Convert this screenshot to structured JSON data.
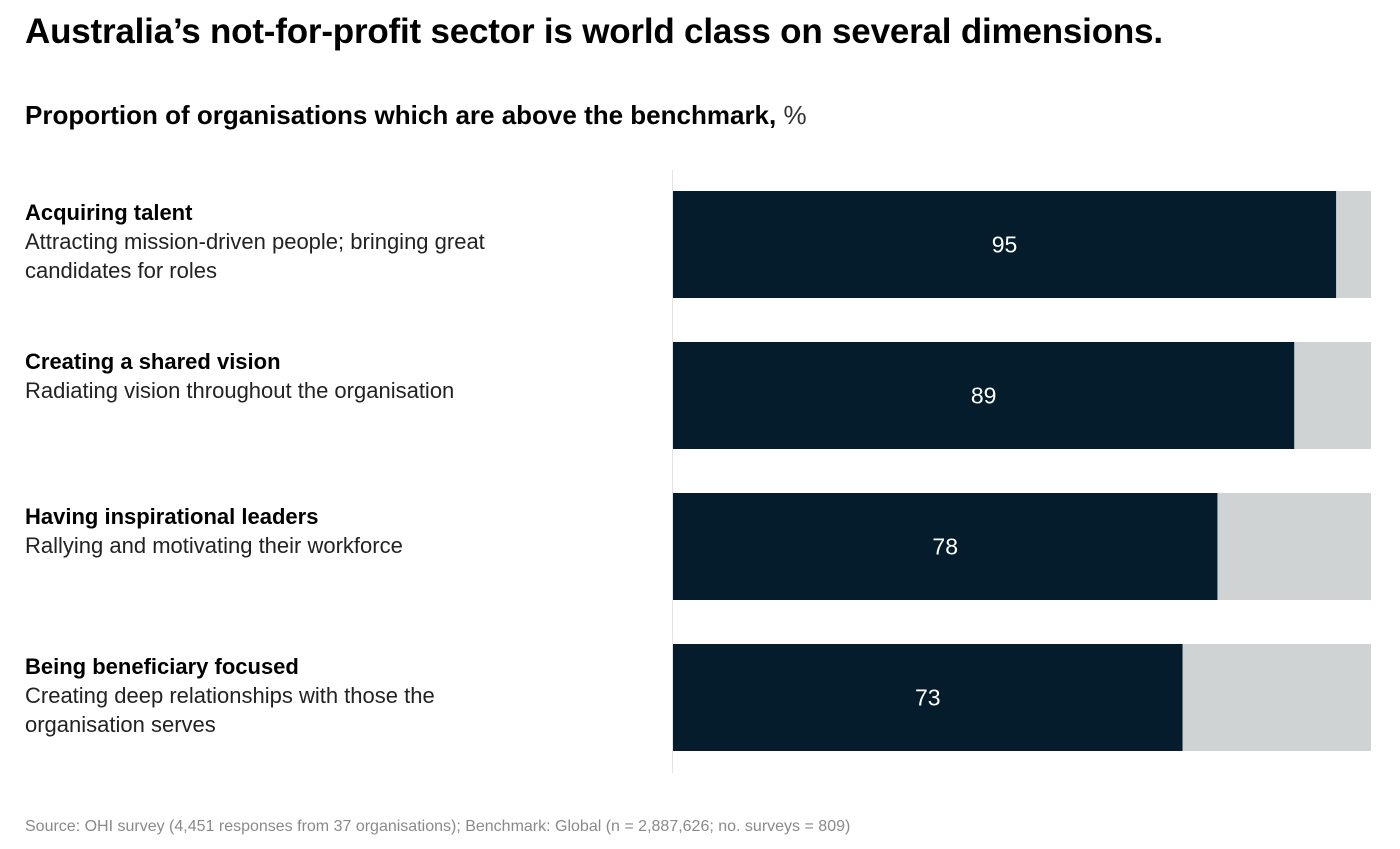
{
  "title": "Australia’s not-for-profit sector is world class on several dimensions.",
  "subtitle": {
    "main": "Proportion of organisations which are above the benchmark,",
    "unit": "%"
  },
  "rows": [
    {
      "head": "Acquiring talent",
      "desc": "Attracting mission-driven people; bringing great candidates for roles"
    },
    {
      "head": "Creating a shared vision",
      "desc": "Radiating vision throughout the organisation"
    },
    {
      "head": "Having inspirational leaders",
      "desc": "Rallying and motivating their workforce"
    },
    {
      "head": "Being beneficiary focused",
      "desc": "Creating deep relationships with those the organisation serves"
    }
  ],
  "chart_data": {
    "type": "bar",
    "orientation": "horizontal",
    "stacked": true,
    "title": "Proportion of organisations which are above the benchmark, %",
    "categories": [
      "Acquiring talent",
      "Creating a shared vision",
      "Having inspirational leaders",
      "Being beneficiary focused"
    ],
    "values": [
      95,
      89,
      78,
      73
    ],
    "value_labels": [
      "95",
      "89",
      "78",
      "73"
    ],
    "xlim": [
      0,
      100
    ],
    "grid": false,
    "colors": {
      "value": "#051c2c",
      "remainder": "#d0d3d4",
      "label": "#ffffff",
      "axis": "#e3e3e3"
    }
  },
  "source": "Source: OHI survey (4,451 responses from 37 organisations); Benchmark: Global (n = 2,887,626; no. surveys = 809)"
}
